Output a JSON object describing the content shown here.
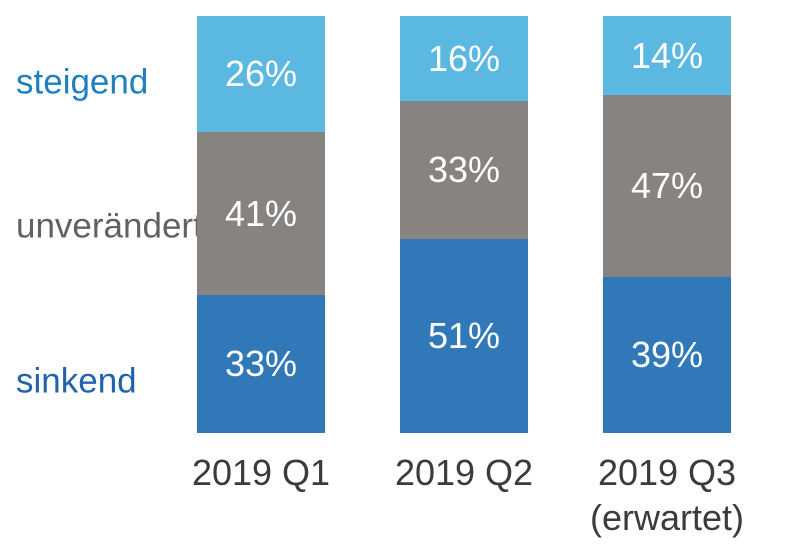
{
  "chart_data": {
    "type": "bar",
    "stacked": true,
    "orientation": "vertical",
    "title": "",
    "categories": [
      "2019 Q1",
      "2019 Q2",
      "2019 Q3\n(erwartet)"
    ],
    "series": [
      {
        "name": "steigend",
        "color": "#5bb8e1",
        "label_color": "#1f80bd",
        "values": [
          26,
          16,
          14
        ]
      },
      {
        "name": "unverändert",
        "color": "#868380",
        "label_color": "#636060",
        "values": [
          41,
          33,
          47
        ]
      },
      {
        "name": "sinkend",
        "color": "#3178b8",
        "label_color": "#1f63ae",
        "values": [
          33,
          51,
          39
        ]
      }
    ],
    "value_suffix": "%",
    "value_label_color": "#ffffff",
    "axis_label_color": "#3d3b39",
    "ylim": [
      0,
      100
    ],
    "grid": false,
    "legend_position": "left"
  }
}
